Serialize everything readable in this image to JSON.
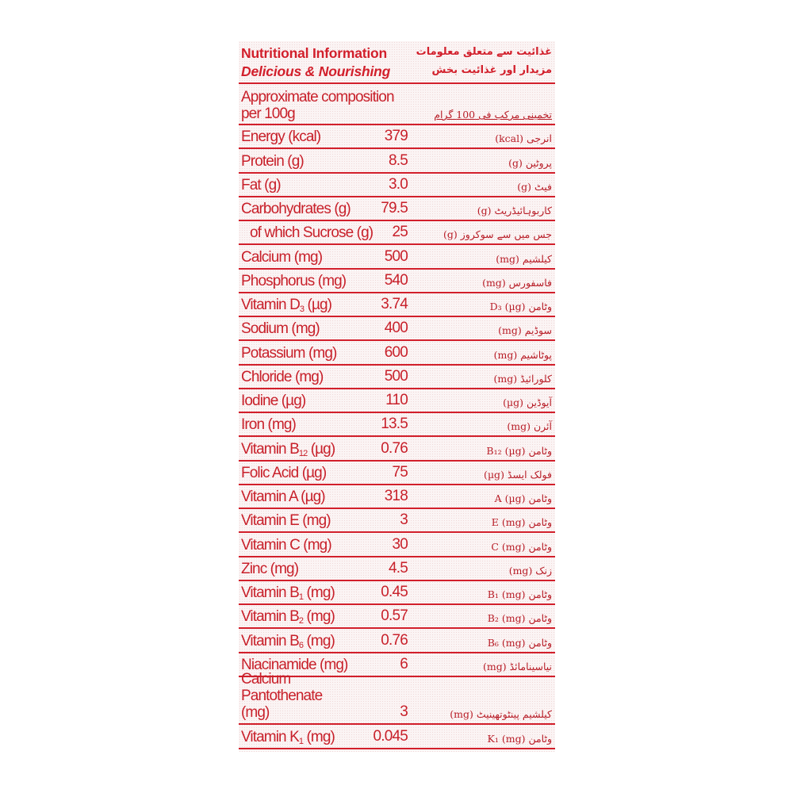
{
  "header": {
    "title": "Nutritional Information",
    "subtitle": "Delicious & Nourishing",
    "title_urdu": "غذائیت سے متعلق معلومات",
    "subtitle_urdu": "مزیدار اور غذائیت بخش"
  },
  "composition": {
    "label": "Approximate composition per 100g",
    "label_urdu": "تخمینی مرکب فی 100 گرام"
  },
  "colors": {
    "text": "#d21f2b",
    "background": "#fbf4f4"
  },
  "rows": [
    {
      "name": "Energy",
      "sub": "",
      "unit": "(kcal)",
      "value": "379",
      "urdu": "انرجی (kcal)"
    },
    {
      "name": "Protein",
      "sub": "",
      "unit": "(g)",
      "value": "8.5",
      "urdu": "پروٹین (g)"
    },
    {
      "name": "Fat",
      "sub": "",
      "unit": "(g)",
      "value": "3.0",
      "urdu": "فیٹ (g)"
    },
    {
      "name": "Carbohydrates",
      "sub": "",
      "unit": "(g)",
      "value": "79.5",
      "urdu": "کاربوہائیڈریٹ (g)"
    },
    {
      "name": "  of which Sucrose",
      "sub": "",
      "unit": "(g)",
      "value": "25",
      "urdu": "جس میں سے سوکروز (g)"
    },
    {
      "name": "Calcium",
      "sub": "",
      "unit": "(mg)",
      "value": "500",
      "urdu": "کیلشیم (mg)"
    },
    {
      "name": "Phosphorus",
      "sub": "",
      "unit": "(mg)",
      "value": "540",
      "urdu": "فاسفورس (mg)"
    },
    {
      "name": "Vitamin D",
      "sub": "3",
      "unit": "(µg)",
      "value": "3.74",
      "urdu": "وٹامن D₃ (µg)"
    },
    {
      "name": "Sodium",
      "sub": "",
      "unit": "(mg)",
      "value": "400",
      "urdu": "سوڈیم (mg)"
    },
    {
      "name": "Potassium",
      "sub": "",
      "unit": "(mg)",
      "value": "600",
      "urdu": "پوٹاشیم (mg)"
    },
    {
      "name": "Chloride",
      "sub": "",
      "unit": "(mg)",
      "value": "500",
      "urdu": "کلورائیڈ (mg)"
    },
    {
      "name": "Iodine",
      "sub": "",
      "unit": "(µg)",
      "value": "110",
      "urdu": "آیوڈین (µg)"
    },
    {
      "name": "Iron",
      "sub": "",
      "unit": "(mg)",
      "value": "13.5",
      "urdu": "آئرن (mg)"
    },
    {
      "name": "Vitamin B",
      "sub": "12",
      "unit": "(µg)",
      "value": "0.76",
      "urdu": "وٹامن B₁₂ (µg)"
    },
    {
      "name": "Folic Acid",
      "sub": "",
      "unit": "(µg)",
      "value": "75",
      "urdu": "فولک ایسڈ (µg)"
    },
    {
      "name": "Vitamin A",
      "sub": "",
      "unit": "(µg)",
      "value": "318",
      "urdu": "وٹامن A (µg)"
    },
    {
      "name": "Vitamin E",
      "sub": "",
      "unit": "(mg)",
      "value": "3",
      "urdu": "وٹامن E (mg)"
    },
    {
      "name": "Vitamin C",
      "sub": "",
      "unit": "(mg)",
      "value": "30",
      "urdu": "وٹامن C (mg)"
    },
    {
      "name": "Zinc",
      "sub": "",
      "unit": "(mg)",
      "value": "4.5",
      "urdu": "زنک (mg)"
    },
    {
      "name": "Vitamin B",
      "sub": "1",
      "unit": "(mg)",
      "value": "0.45",
      "urdu": "وٹامن B₁ (mg)"
    },
    {
      "name": "Vitamin B",
      "sub": "2",
      "unit": "(mg)",
      "value": "0.57",
      "urdu": "وٹامن B₂ (mg)"
    },
    {
      "name": "Vitamin B",
      "sub": "6",
      "unit": "(mg)",
      "value": "0.76",
      "urdu": "وٹامن B₆ (mg)"
    },
    {
      "name": "Niacinamide",
      "sub": "",
      "unit": "(mg)",
      "value": "6",
      "urdu": "نیاسینامائڈ (mg)"
    },
    {
      "name": "Calcium Pantothenate",
      "sub": "",
      "unit": "(mg)",
      "value": "3",
      "urdu": "کیلشیم پینٹوتھینیٹ (mg)",
      "tall": true
    },
    {
      "name": "Vitamin K",
      "sub": "1",
      "unit": "(mg)",
      "value": "0.045",
      "urdu": "وٹامن K₁ (mg)"
    }
  ]
}
